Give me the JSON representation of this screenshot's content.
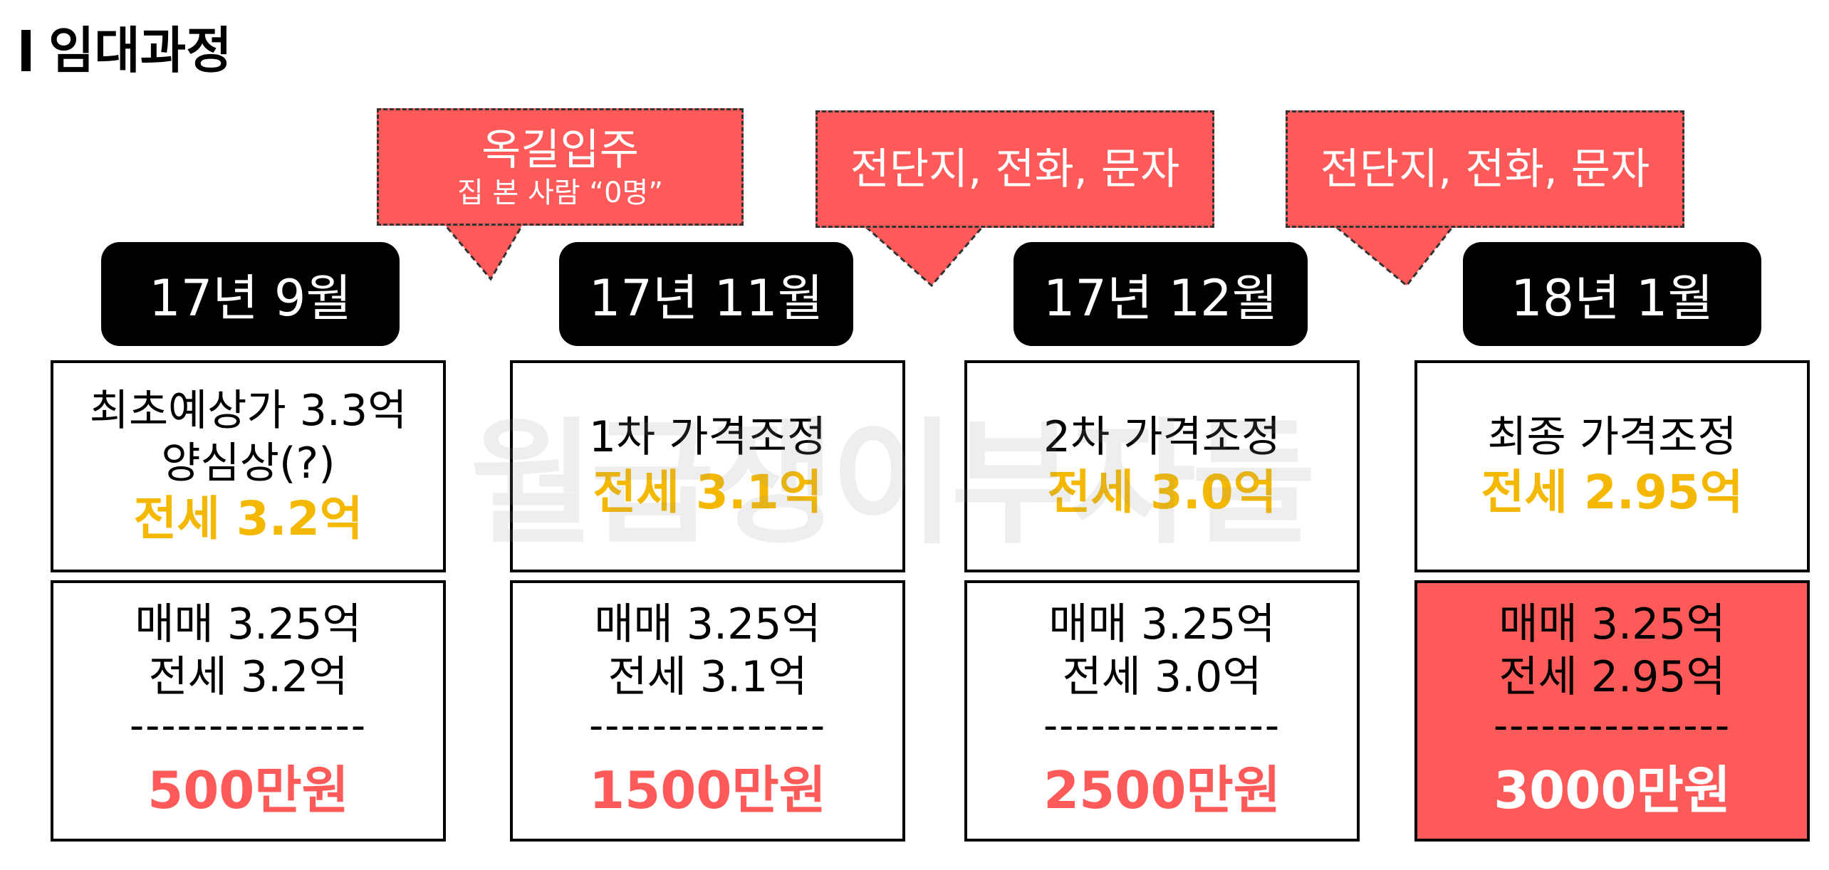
{
  "title": "임대과정",
  "watermark": "월급쟁이부자들",
  "callouts": [
    {
      "main": "옥길입주",
      "sub": "집 본 사람 “0명”"
    },
    {
      "main": "전단지, 전화, 문자"
    },
    {
      "main": "전단지, 전화, 문자"
    }
  ],
  "stages": [
    {
      "date": "17년 9월",
      "top_lines": [
        "최초예상가 3.3억",
        "양심상(?)"
      ],
      "top_highlight": "전세 3.2억",
      "sale": "매매 3.25억",
      "lease": "전세 3.2억",
      "divider": "---------------",
      "gap": "500만원"
    },
    {
      "date": "17년 11월",
      "top_lines": [
        "1차 가격조정"
      ],
      "top_highlight": "전세 3.1억",
      "sale": "매매 3.25억",
      "lease": "전세 3.1억",
      "divider": "---------------",
      "gap": "1500만원"
    },
    {
      "date": "17년 12월",
      "top_lines": [
        "2차 가격조정"
      ],
      "top_highlight": "전세 3.0억",
      "sale": "매매 3.25억",
      "lease": "전세 3.0억",
      "divider": "---------------",
      "gap": "2500만원"
    },
    {
      "date": "18년 1월",
      "top_lines": [
        "최종 가격조정"
      ],
      "top_highlight": "전세 2.95억",
      "sale": "매매 3.25억",
      "lease": "전세 2.95억",
      "divider": "---------------",
      "gap": "3000만원"
    }
  ],
  "colors": {
    "accent_red": "#fe5a59",
    "accent_yellow": "#f5b800",
    "date_bg": "#000000"
  }
}
